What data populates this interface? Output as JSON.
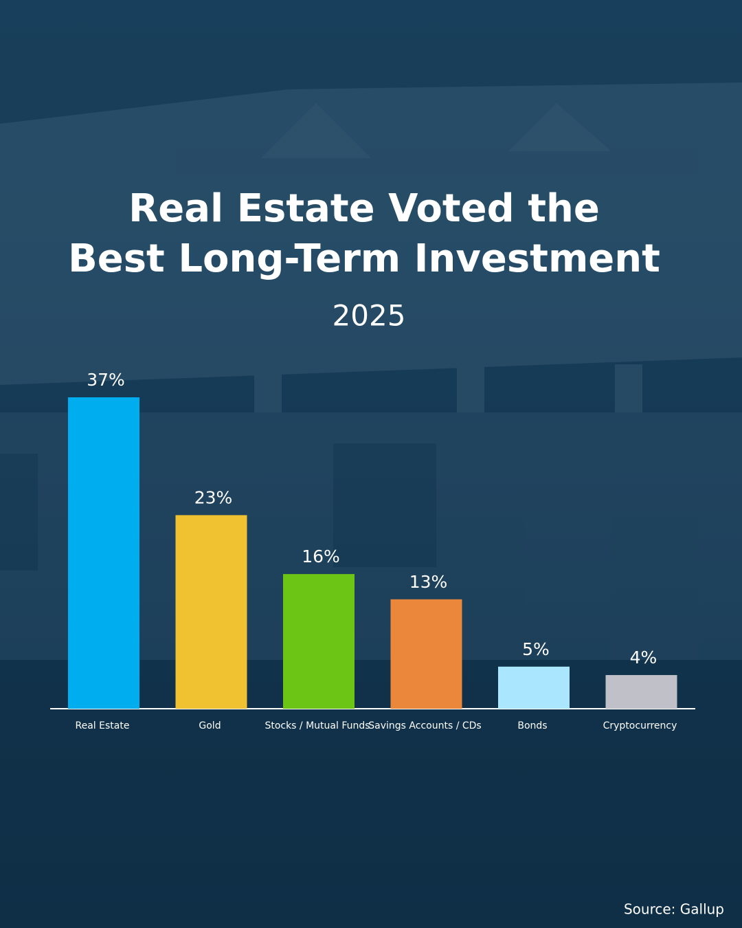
{
  "chart_data": {
    "type": "bar",
    "title": [
      "Real Estate Voted the",
      "Best Long-Term Investment"
    ],
    "subtitle": "2025",
    "source": "Source: Gallup",
    "categories": [
      "Real Estate",
      "Gold",
      "Stocks / Mutual Funds",
      "Savings Accounts / CDs",
      "Bonds",
      "Cryptocurrency"
    ],
    "values": [
      37,
      23,
      16,
      13,
      5,
      4
    ],
    "value_labels": [
      "37%",
      "23%",
      "16%",
      "13%",
      "5%",
      "4%"
    ],
    "colors": [
      "#00adef",
      "#f0c232",
      "#6cc414",
      "#ea873a",
      "#abe6ff",
      "#c0c1c8"
    ]
  }
}
